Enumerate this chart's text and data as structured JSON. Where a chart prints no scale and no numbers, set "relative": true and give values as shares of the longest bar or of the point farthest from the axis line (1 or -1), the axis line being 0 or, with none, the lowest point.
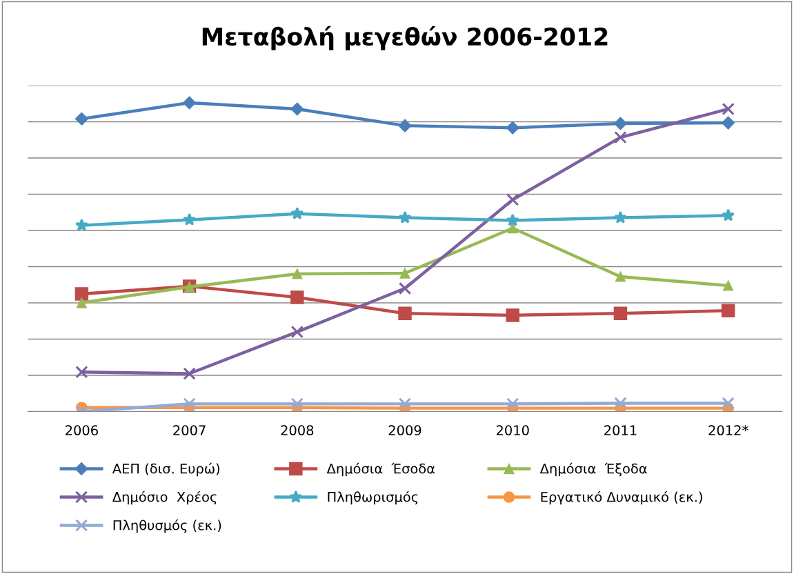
{
  "chart_data": {
    "type": "line",
    "title": "Μεταβολή μεγεθών 2006-2012",
    "relative": true,
    "grid": "y",
    "legend": "bottom",
    "categories": [
      "2006",
      "2007",
      "2008",
      "2009",
      "2010",
      "2011",
      "2012*"
    ],
    "series": [
      {
        "name": "ΑΕΠ (δισ. Ευρώ)",
        "color": "#4a7ebb",
        "marker": "diamond",
        "values": [
          0.948,
          1,
          0.98,
          0.926,
          0.919,
          0.933,
          0.935
        ]
      },
      {
        "name": "Δημόσια  Έσοδα",
        "color": "#be4b48",
        "marker": "square",
        "values": [
          0.381,
          0.406,
          0.37,
          0.318,
          0.312,
          0.318,
          0.327
        ]
      },
      {
        "name": "Δημόσια  Έξοδα",
        "color": "#98b954",
        "marker": "triangle",
        "values": [
          0.352,
          0.404,
          0.446,
          0.448,
          0.594,
          0.437,
          0.408
        ]
      },
      {
        "name": "Δημόσιο  Χρέος",
        "color": "#7d60a0",
        "marker": "cross",
        "values": [
          0.128,
          0.123,
          0.258,
          0.399,
          0.686,
          0.888,
          0.98
        ]
      },
      {
        "name": "Πληθωρισμός",
        "color": "#46aac5",
        "marker": "star",
        "values": [
          0.603,
          0.621,
          0.641,
          0.628,
          0.619,
          0.628,
          0.635
        ]
      },
      {
        "name": "Εργατικό Δυναμικό (εκ.)",
        "color": "#f79646",
        "marker": "circle",
        "values": [
          0.013,
          0.013,
          0.013,
          0.011,
          0.011,
          0.011,
          0.011
        ]
      },
      {
        "name": "Πληθυσμός (εκ.)",
        "color": "#94aad6",
        "marker": "cross",
        "values": [
          0,
          0.025,
          0.025,
          0.025,
          0.025,
          0.027,
          0.027
        ]
      }
    ]
  }
}
